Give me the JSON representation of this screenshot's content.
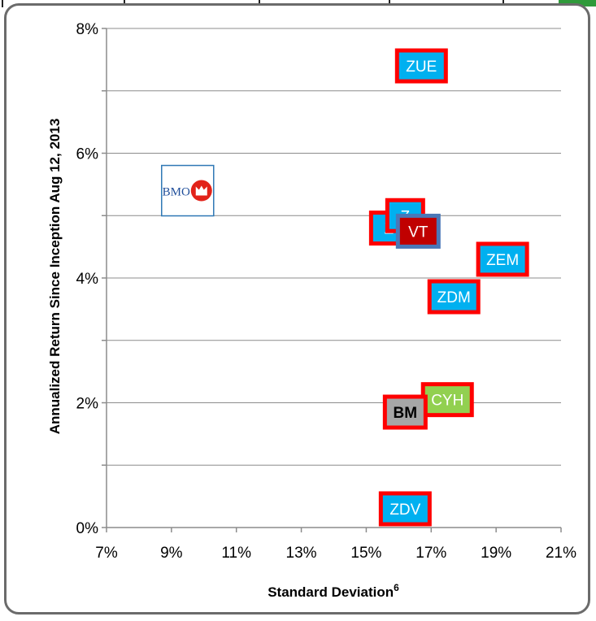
{
  "chart_data": {
    "type": "scatter",
    "xlabel": "Standard Deviation",
    "xlabel_sup": "6",
    "ylabel": "Annualized Return Since Inception Aug 12, 2013",
    "xlim": [
      7,
      21
    ],
    "ylim": [
      0,
      8
    ],
    "x_ticks": [
      "7%",
      "9%",
      "11%",
      "13%",
      "15%",
      "17%",
      "19%",
      "21%"
    ],
    "y_ticks": [
      "0%",
      "2%",
      "4%",
      "6%",
      "8%"
    ],
    "gridlines": "horizontal",
    "logo": {
      "text": "BMO",
      "x": 10.3,
      "y": 5.4
    },
    "points": [
      {
        "label": "ZUE",
        "x": 16.7,
        "y": 7.4,
        "fill": "#00b0f0",
        "text_color": "#ffffff",
        "border": "#ff0000"
      },
      {
        "label": "Z",
        "x": 15.7,
        "y": 4.8,
        "fill": "#00b0f0",
        "text_color": "#ffffff",
        "border": "#ff0000"
      },
      {
        "label": "Z",
        "x": 16.2,
        "y": 5.0,
        "fill": "#00b0f0",
        "text_color": "#ffffff",
        "border": "#ff0000"
      },
      {
        "label": "VT",
        "x": 16.6,
        "y": 4.75,
        "fill": "#c00000",
        "text_color": "#ffffff",
        "border": "#4a78b8"
      },
      {
        "label": "ZEM",
        "x": 19.2,
        "y": 4.3,
        "fill": "#00b0f0",
        "text_color": "#ffffff",
        "border": "#ff0000"
      },
      {
        "label": "ZDM",
        "x": 17.7,
        "y": 3.7,
        "fill": "#00b0f0",
        "text_color": "#ffffff",
        "border": "#ff0000"
      },
      {
        "label": "CYH",
        "x": 17.5,
        "y": 2.05,
        "fill": "#92d050",
        "text_color": "#ffffff",
        "border": "#ff0000"
      },
      {
        "label": "BM",
        "x": 16.2,
        "y": 1.85,
        "fill": "#a6a6a6",
        "text_color": "#000000",
        "border": "#ff0000"
      },
      {
        "label": "ZDV",
        "x": 16.2,
        "y": 0.3,
        "fill": "#00b0f0",
        "text_color": "#ffffff",
        "border": "#ff0000"
      }
    ]
  }
}
